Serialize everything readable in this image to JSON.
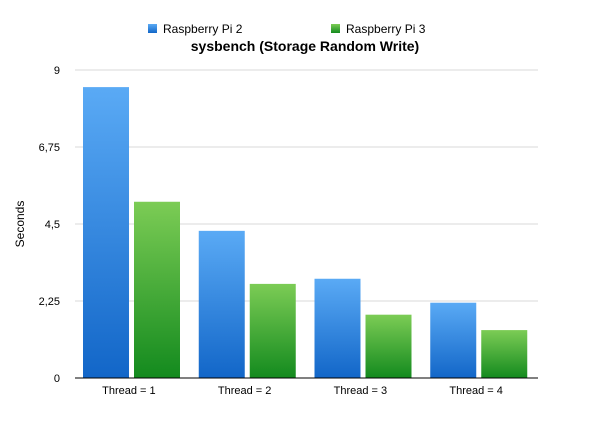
{
  "chart_data": {
    "type": "bar",
    "title": "sysbench (Storage Random Write)",
    "xlabel": "",
    "ylabel": "Seconds",
    "categories": [
      "Thread = 1",
      "Thread = 2",
      "Thread = 3",
      "Thread = 4"
    ],
    "series": [
      {
        "name": "Raspberry Pi 2",
        "values": [
          8.5,
          4.3,
          2.9,
          2.2
        ],
        "color_top": "#5aaaf5",
        "color_bottom": "#1266c8"
      },
      {
        "name": "Raspberry Pi 3",
        "values": [
          5.15,
          2.75,
          1.85,
          1.4
        ],
        "color_top": "#7ccc55",
        "color_bottom": "#138a1e"
      }
    ],
    "ylim": [
      0,
      9
    ],
    "yticks": [
      0,
      2.25,
      4.5,
      6.75,
      9
    ],
    "ytick_labels": [
      "0",
      "2,25",
      "4,5",
      "6,75",
      "9"
    ],
    "grid": true,
    "legend_position": "top"
  }
}
